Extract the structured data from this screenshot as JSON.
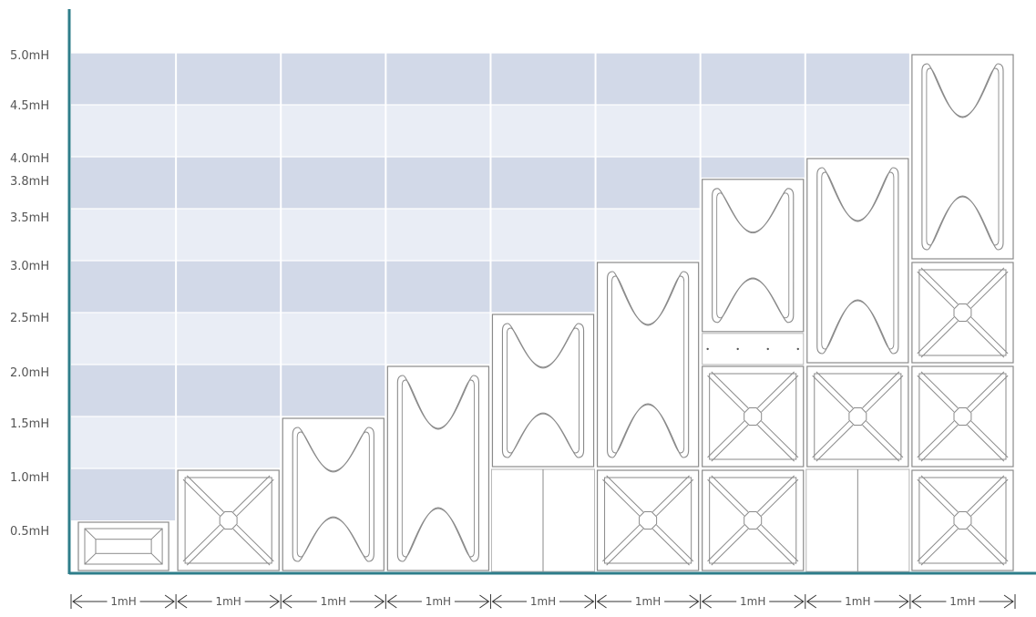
{
  "y_axis": {
    "labels": [
      "0.5mH",
      "1.0mH",
      "1.5mH",
      "2.0mH",
      "2.5mH",
      "3.0mH",
      "3.5mH",
      "3.8mH",
      "4.0mH",
      "4.5mH",
      "5.0mH"
    ]
  },
  "x_axis": {
    "labels": [
      "1mH",
      "1mH",
      "1mH",
      "1mH",
      "1mH",
      "1mH",
      "1mH",
      "1mH",
      "1mH"
    ]
  },
  "colors": {
    "axis": "#2e7d8a",
    "band_dark": "#d2d9e8",
    "band_light": "#e9edf5",
    "panel_stroke": "#8a8a8a"
  },
  "columns": [
    {
      "pieces": [
        {
          "type": "flat-panel",
          "from": 0,
          "to": 0.5
        }
      ]
    },
    {
      "pieces": [
        {
          "type": "x-panel",
          "from": 0,
          "to": 1.0
        }
      ]
    },
    {
      "pieces": [
        {
          "type": "curved-panel",
          "from": 0,
          "to": 1.5
        }
      ]
    },
    {
      "pieces": [
        {
          "type": "curved-panel",
          "from": 0,
          "to": 2.0
        }
      ]
    },
    {
      "pieces": [
        {
          "type": "split-panel",
          "from": 0,
          "to": 1.0
        },
        {
          "type": "curved-panel",
          "from": 1.0,
          "to": 2.5
        }
      ]
    },
    {
      "pieces": [
        {
          "type": "x-panel",
          "from": 0,
          "to": 1.0
        },
        {
          "type": "curved-panel",
          "from": 1.0,
          "to": 3.0
        }
      ]
    },
    {
      "pieces": [
        {
          "type": "x-panel",
          "from": 0,
          "to": 1.0
        },
        {
          "type": "x-panel",
          "from": 1.0,
          "to": 2.0
        },
        {
          "type": "spacer-panel",
          "from": 2.0,
          "to": 2.3
        },
        {
          "type": "curved-panel",
          "from": 2.3,
          "to": 3.8
        }
      ]
    },
    {
      "pieces": [
        {
          "type": "split-panel",
          "from": 0,
          "to": 1.0
        },
        {
          "type": "x-panel",
          "from": 1.0,
          "to": 2.0
        },
        {
          "type": "curved-panel",
          "from": 2.0,
          "to": 4.0
        }
      ]
    },
    {
      "pieces": [
        {
          "type": "x-panel",
          "from": 0,
          "to": 1.0
        },
        {
          "type": "x-panel",
          "from": 1.0,
          "to": 2.0
        },
        {
          "type": "x-panel",
          "from": 2.0,
          "to": 3.0
        },
        {
          "type": "curved-panel",
          "from": 3.0,
          "to": 5.0
        }
      ]
    }
  ]
}
